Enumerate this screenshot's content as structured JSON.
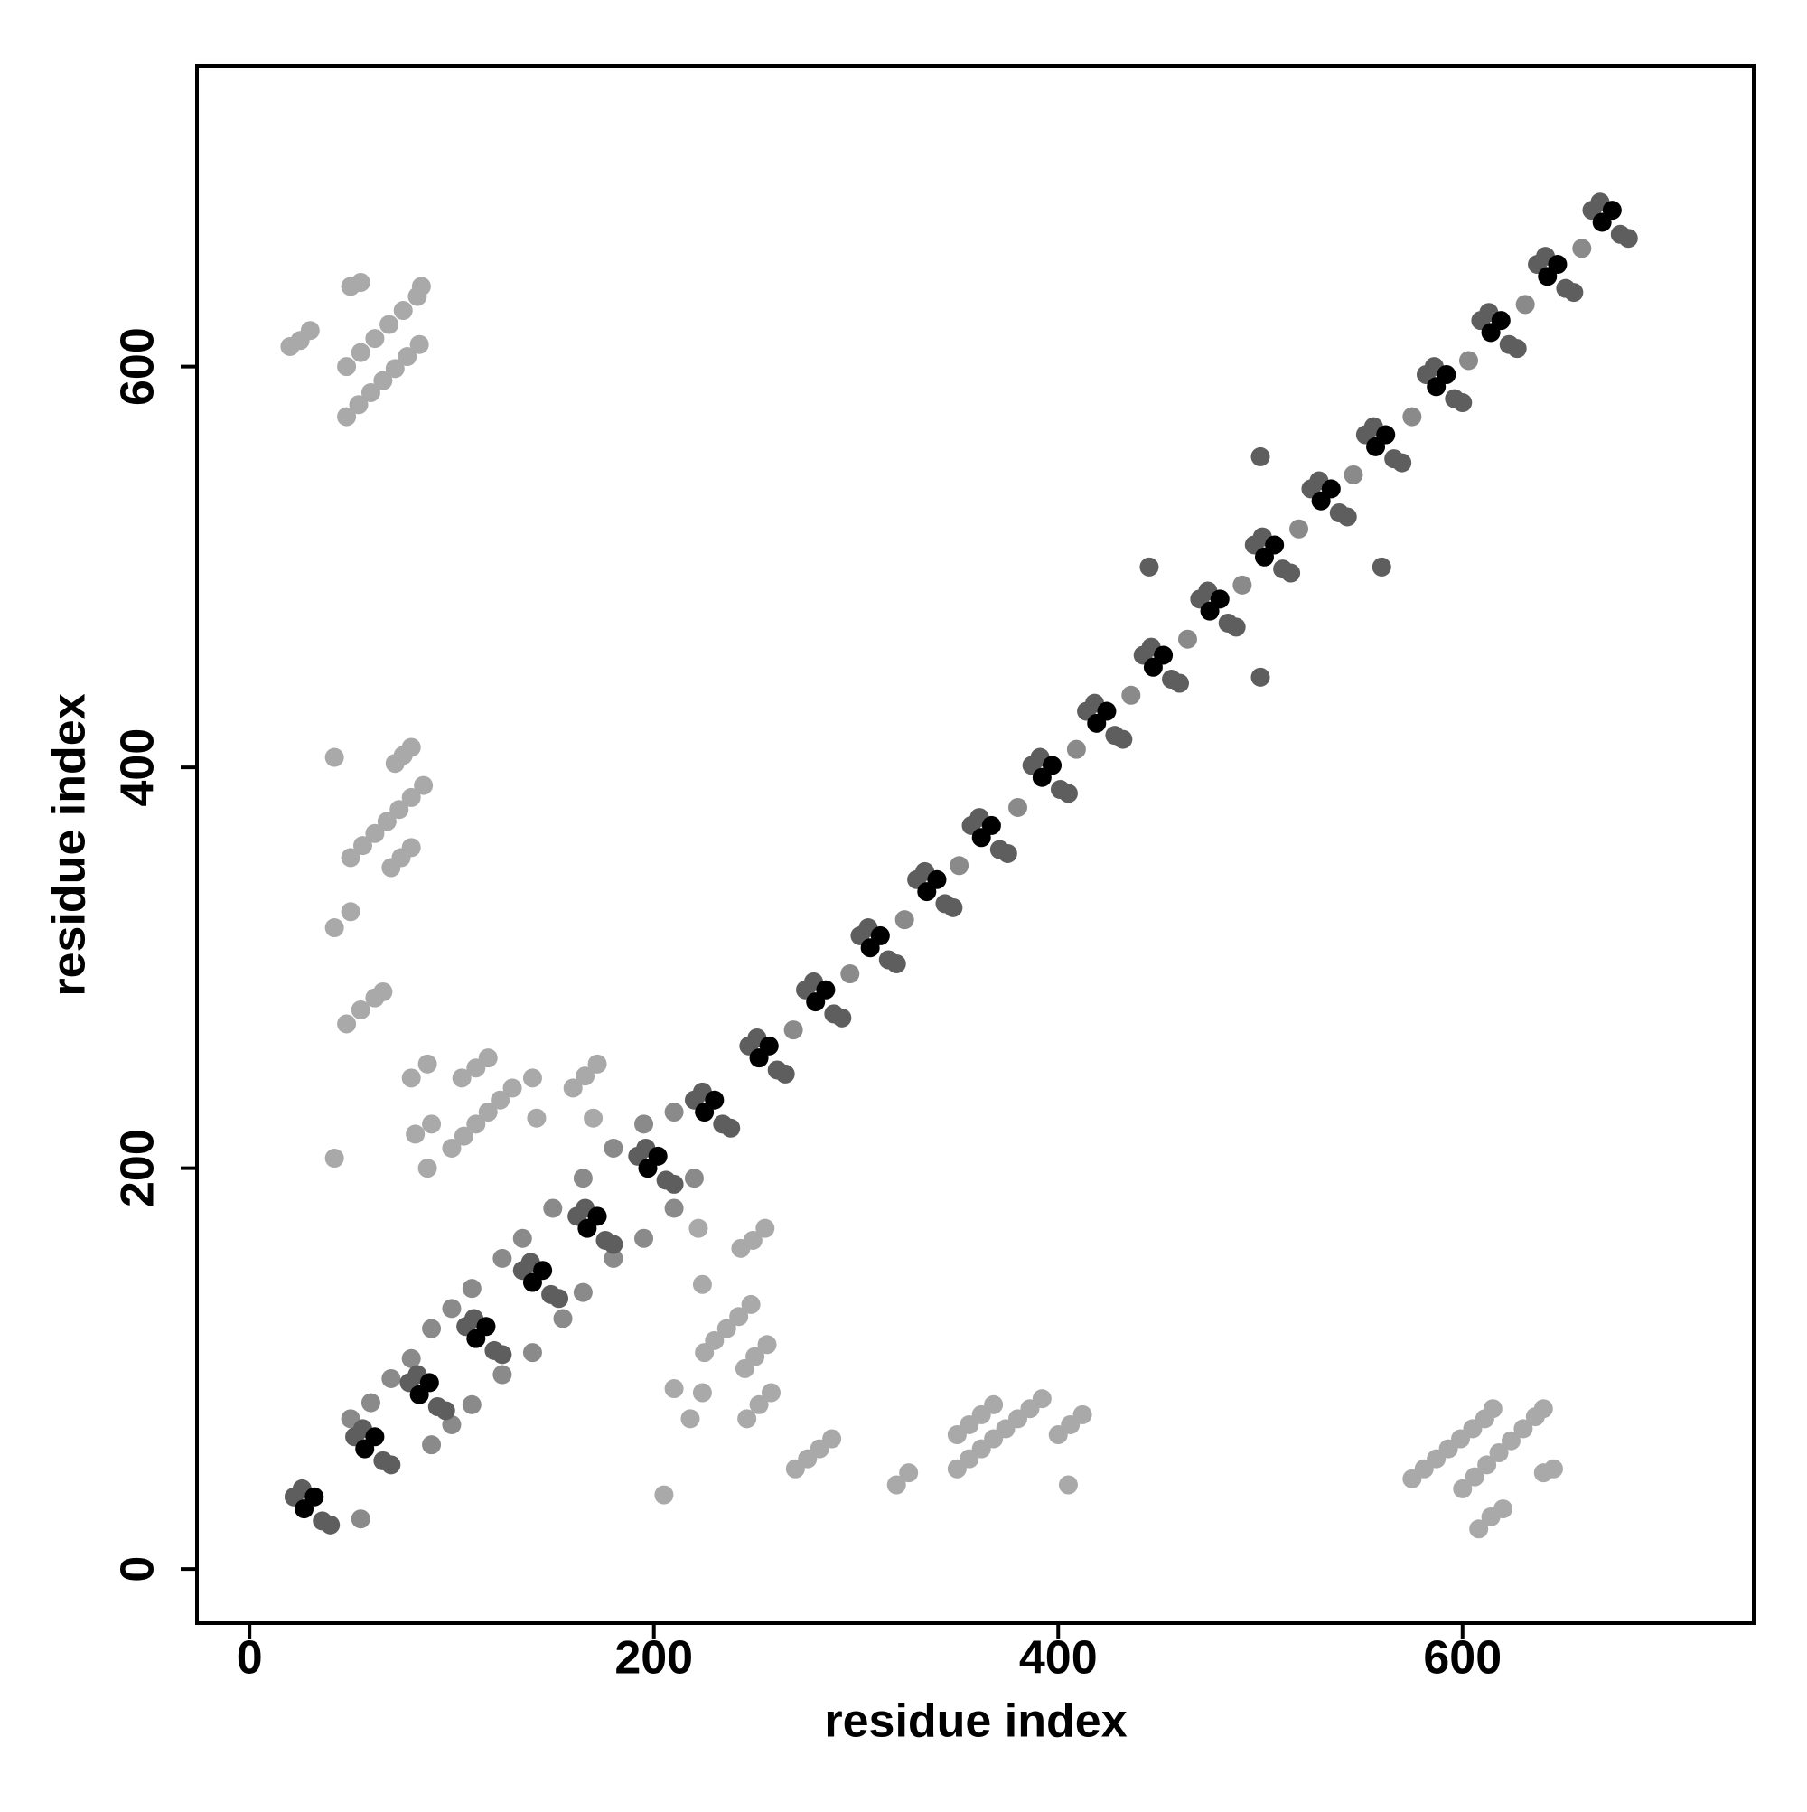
{
  "chart_data": {
    "type": "scatter",
    "x_label": "residue index",
    "y_label": "residue index",
    "xlim": [
      -26,
      744
    ],
    "ylim": [
      -27,
      750
    ],
    "xticks": [
      0,
      200,
      400,
      600
    ],
    "yticks": [
      0,
      200,
      400,
      600
    ],
    "series": [
      {
        "color": "#a9a9a9",
        "x": [
          48,
          54,
          60,
          66,
          72,
          78,
          84,
          48,
          55,
          62,
          69,
          76,
          83,
          85,
          20,
          25,
          30,
          50,
          55,
          50,
          56,
          62,
          68,
          74,
          80,
          86,
          72,
          76,
          80,
          70,
          75,
          80,
          42,
          42,
          50,
          48,
          55,
          62,
          66,
          80,
          88,
          82,
          90,
          42,
          88,
          100,
          106,
          112,
          118,
          124,
          130,
          105,
          112,
          118,
          140,
          142,
          160,
          166,
          172,
          170,
          210,
          218,
          222,
          224,
          225,
          230,
          236,
          242,
          248,
          224,
          246,
          252,
          258,
          245,
          250,
          256,
          243,
          249,
          255,
          205,
          270,
          276,
          282,
          288,
          350,
          356,
          362,
          368,
          374,
          380,
          386,
          392,
          350,
          356,
          362,
          368,
          405,
          400,
          406,
          412,
          320,
          326,
          575,
          581,
          587,
          593,
          599,
          605,
          611,
          615,
          600,
          606,
          612,
          618,
          624,
          630,
          636,
          640,
          608,
          614,
          620,
          640,
          645
        ],
        "y": [
          575,
          581,
          587,
          593,
          599,
          605,
          611,
          600,
          607,
          614,
          621,
          628,
          635,
          640,
          610,
          613,
          618,
          640,
          642,
          355,
          361,
          367,
          373,
          379,
          385,
          391,
          402,
          406,
          410,
          350,
          355,
          360,
          405,
          320,
          328,
          272,
          279,
          285,
          288,
          245,
          252,
          217,
          222,
          205,
          200,
          210,
          216,
          222,
          228,
          234,
          240,
          245,
          250,
          255,
          245,
          225,
          240,
          246,
          252,
          225,
          90,
          75,
          170,
          142,
          108,
          114,
          120,
          126,
          132,
          88,
          75,
          82,
          88,
          100,
          106,
          112,
          160,
          164,
          170,
          37,
          50,
          55,
          60,
          65,
          50,
          55,
          60,
          65,
          70,
          75,
          80,
          85,
          67,
          72,
          77,
          82,
          42,
          67,
          72,
          77,
          42,
          48,
          45,
          50,
          55,
          60,
          65,
          70,
          75,
          80,
          40,
          46,
          52,
          58,
          64,
          70,
          76,
          80,
          20,
          26,
          30,
          48,
          50
        ]
      },
      {
        "color": "#8a8a8a",
        "x": [
          50,
          60,
          70,
          80,
          90,
          100,
          110,
          125,
          135,
          150,
          165,
          180,
          195,
          210,
          55,
          90,
          100,
          110,
          125,
          140,
          155,
          165,
          180,
          195,
          210,
          220,
          269,
          297,
          324,
          351,
          380,
          409,
          436,
          464,
          491,
          519,
          546,
          575,
          603,
          631,
          659
        ],
        "y": [
          75,
          83,
          95,
          105,
          120,
          130,
          140,
          155,
          165,
          180,
          195,
          210,
          222,
          228,
          25,
          62,
          72,
          82,
          97,
          108,
          125,
          138,
          155,
          165,
          180,
          195,
          269,
          297,
          324,
          351,
          380,
          409,
          436,
          464,
          491,
          519,
          546,
          575,
          603,
          631,
          659
        ]
      },
      {
        "color": "#5e5e5e",
        "x": [
          22,
          26,
          36,
          40,
          52,
          56,
          66,
          70,
          79,
          83,
          93,
          97,
          107,
          111,
          121,
          125,
          135,
          139,
          149,
          153,
          162,
          166,
          176,
          180,
          192,
          196,
          206,
          210,
          220,
          224,
          234,
          238,
          247,
          251,
          261,
          265,
          275,
          279,
          289,
          293,
          302,
          306,
          316,
          320,
          330,
          334,
          344,
          348,
          357,
          361,
          371,
          375,
          387,
          391,
          401,
          405,
          414,
          418,
          428,
          432,
          442,
          446,
          456,
          460,
          470,
          474,
          484,
          488,
          497,
          501,
          511,
          515,
          525,
          529,
          539,
          543,
          552,
          556,
          566,
          570,
          582,
          586,
          596,
          600,
          609,
          613,
          623,
          627,
          637,
          641,
          651,
          655,
          664,
          668,
          678,
          682,
          500,
          445,
          500,
          560
        ],
        "y": [
          36,
          40,
          24,
          22,
          66,
          70,
          54,
          52,
          93,
          97,
          81,
          79,
          121,
          125,
          109,
          107,
          149,
          153,
          137,
          135,
          176,
          180,
          164,
          162,
          206,
          210,
          194,
          192,
          234,
          238,
          222,
          220,
          261,
          265,
          249,
          247,
          289,
          293,
          277,
          275,
          316,
          320,
          304,
          302,
          344,
          348,
          332,
          330,
          371,
          375,
          359,
          357,
          401,
          405,
          389,
          387,
          428,
          432,
          416,
          414,
          456,
          460,
          444,
          442,
          484,
          488,
          472,
          470,
          511,
          515,
          499,
          497,
          539,
          543,
          527,
          525,
          566,
          570,
          554,
          552,
          596,
          600,
          584,
          582,
          623,
          627,
          611,
          609,
          651,
          655,
          639,
          637,
          678,
          682,
          666,
          664,
          555,
          500,
          445,
          500
        ]
      },
      {
        "color": "#000000",
        "x": [
          27,
          32,
          57,
          62,
          84,
          89,
          112,
          117,
          140,
          145,
          167,
          172,
          197,
          202,
          225,
          230,
          252,
          257,
          280,
          285,
          307,
          312,
          335,
          340,
          362,
          367,
          392,
          397,
          419,
          424,
          447,
          452,
          475,
          480,
          502,
          507,
          530,
          535,
          557,
          562,
          587,
          592,
          614,
          619,
          642,
          647,
          669,
          674
        ],
        "y": [
          30,
          36,
          60,
          66,
          87,
          93,
          115,
          121,
          143,
          149,
          170,
          176,
          200,
          206,
          228,
          234,
          255,
          261,
          283,
          289,
          310,
          316,
          338,
          344,
          365,
          371,
          395,
          401,
          422,
          428,
          450,
          456,
          478,
          484,
          505,
          511,
          533,
          539,
          560,
          566,
          590,
          596,
          617,
          623,
          645,
          651,
          672,
          678
        ]
      }
    ]
  }
}
